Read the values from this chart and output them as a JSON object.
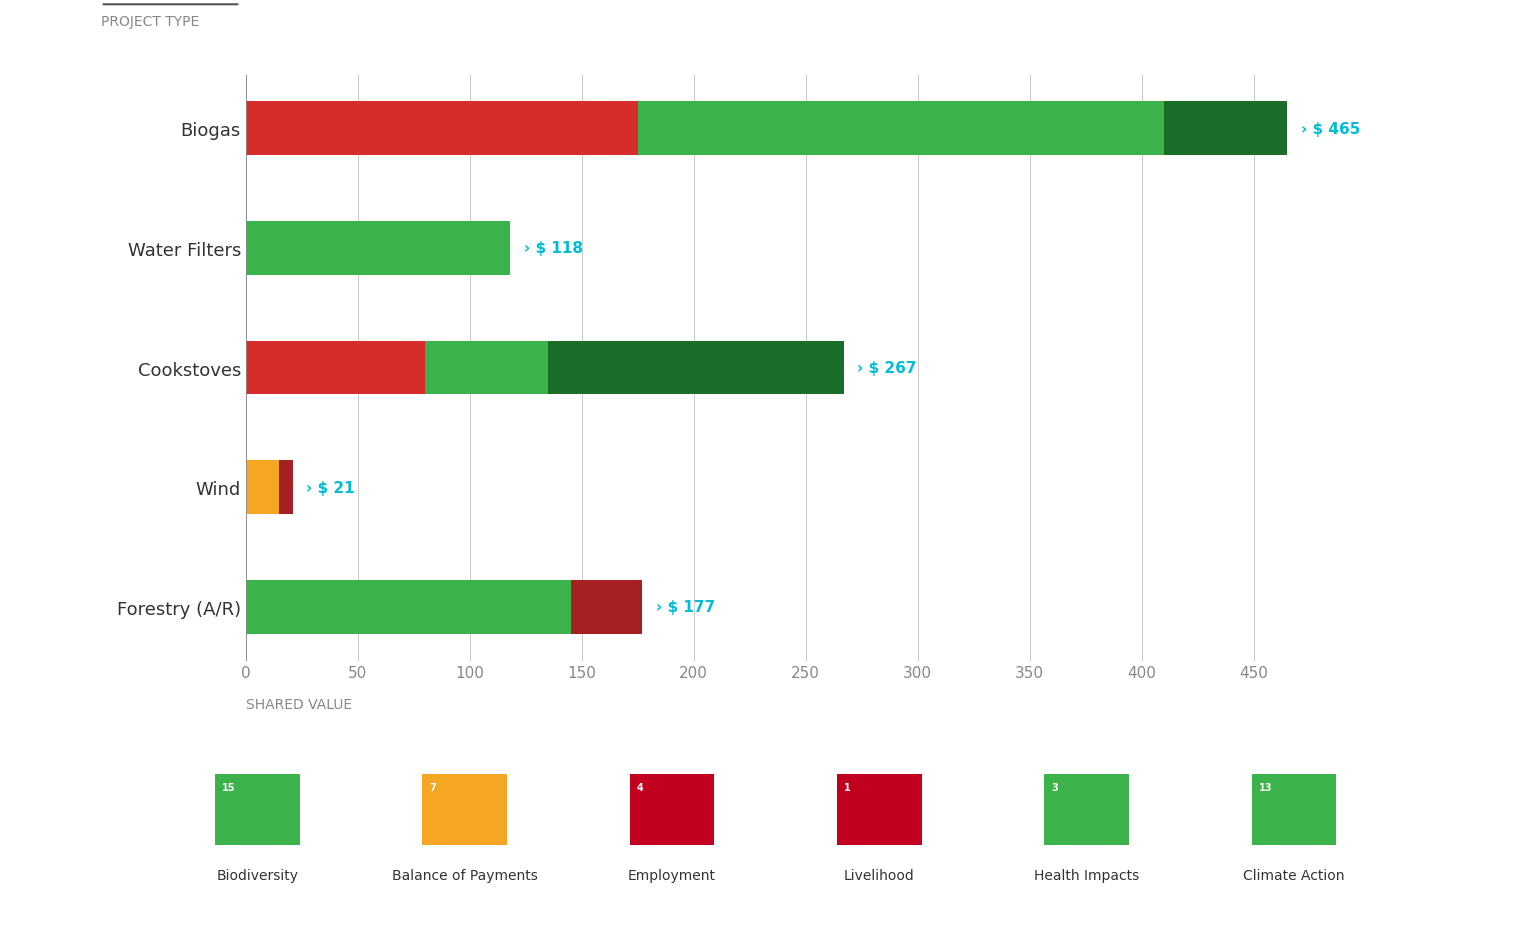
{
  "projects": [
    "Biogas",
    "Water Filters",
    "Cookstoves",
    "Wind",
    "Forestry (A/R)"
  ],
  "segments": {
    "Biogas": [
      [
        "red",
        175
      ],
      [
        "light_green",
        235
      ],
      [
        "dark_green",
        55
      ]
    ],
    "Water Filters": [
      [
        "light_green",
        118
      ]
    ],
    "Cookstoves": [
      [
        "red",
        80
      ],
      [
        "light_green",
        55
      ],
      [
        "dark_green",
        132
      ]
    ],
    "Wind": [
      [
        "yellow",
        15
      ],
      [
        "dark_red",
        6
      ]
    ],
    "Forestry (A/R)": [
      [
        "light_green",
        145
      ],
      [
        "dark_red",
        32
      ]
    ]
  },
  "totals": {
    "Biogas": 465,
    "Water Filters": 118,
    "Cookstoves": 267,
    "Wind": 21,
    "Forestry (A/R)": 177
  },
  "colors": {
    "red": "#D62C2C",
    "light_green": "#3CB34A",
    "dark_green": "#1A6E2A",
    "yellow": "#F5A623",
    "dark_red": "#A52020"
  },
  "xlabel": "SHARED VALUE",
  "xlim": [
    0,
    480
  ],
  "xticks": [
    0,
    50,
    100,
    150,
    200,
    250,
    300,
    350,
    400,
    450
  ],
  "bar_height": 0.45,
  "background_color": "#FFFFFF",
  "label_color": "#333333",
  "arrow_color": "#00BCD4",
  "grid_color": "#CCCCCC",
  "sdg_labels": [
    "Biodiversity",
    "Balance of Payments",
    "Employment",
    "Livelihood",
    "Health Impacts",
    "Climate Action"
  ],
  "sdg_colors": [
    "#3CB34A",
    "#F5A623",
    "#C1001F",
    "#C1001F",
    "#3CB34A",
    "#3CB34A"
  ],
  "sdg_numbers": [
    "15",
    "7",
    "4",
    "1",
    "3",
    "13"
  ],
  "project_type_label": "PROJECT TYPE"
}
